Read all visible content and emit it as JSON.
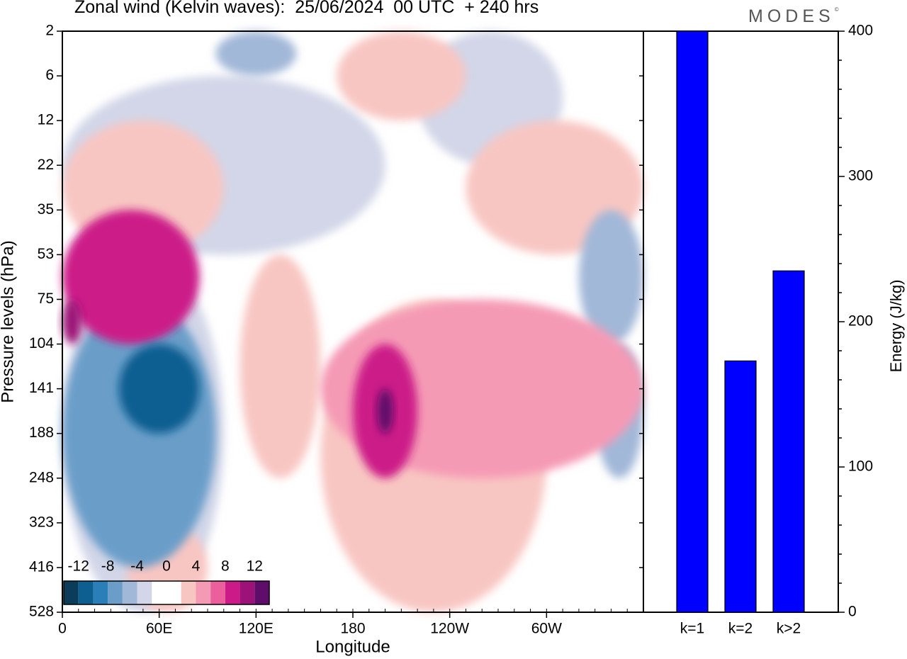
{
  "title": "Zonal wind (Kelvin waves):  25/06/2024  00 UTC  + 240 hrs",
  "brand": {
    "name": "MODES",
    "mark": "©"
  },
  "chart_data": [
    {
      "type": "heatmap",
      "title": "Zonal wind (Kelvin waves):  25/06/2024  00 UTC  + 240 hrs",
      "xlabel": "Longitude",
      "ylabel": "Pressure levels (hPa)",
      "x_ticks": [
        "0",
        "60E",
        "120E",
        "180",
        "120W",
        "60W"
      ],
      "x_tick_degrees": [
        0,
        60,
        120,
        180,
        240,
        300
      ],
      "xlim": [
        0,
        360
      ],
      "y_ticks": [
        "2",
        "6",
        "12",
        "22",
        "35",
        "53",
        "75",
        "104",
        "141",
        "188",
        "248",
        "323",
        "416",
        "528"
      ],
      "colorbar": {
        "labels": [
          "-12",
          "-8",
          "-4",
          "0",
          "4",
          "8",
          "12"
        ],
        "colors": [
          "#0b3d5a",
          "#0d5f92",
          "#2b7fb8",
          "#6a9ec9",
          "#a2b8d8",
          "#d2d6e8",
          "#ffffff",
          "#ffffff",
          "#f8c6c2",
          "#f59ab5",
          "#ec5f9d",
          "#cc1a88",
          "#9c1278",
          "#5f0c6a"
        ]
      },
      "anomalies": [
        {
          "sign": "negative",
          "level": 5,
          "x": [
            35,
            85
          ],
          "y": [
            104,
            188
          ]
        },
        {
          "sign": "negative",
          "level": 3,
          "x": [
            0,
            95
          ],
          "y": [
            75,
            416
          ]
        },
        {
          "sign": "negative",
          "level": 1,
          "x": [
            0,
            100
          ],
          "y": [
            53,
            528
          ]
        },
        {
          "sign": "negative",
          "level": 2,
          "x": [
            95,
            145
          ],
          "y": [
            2,
            6
          ]
        },
        {
          "sign": "negative",
          "level": 1,
          "x": [
            0,
            200
          ],
          "y": [
            6,
            53
          ]
        },
        {
          "sign": "negative",
          "level": 2,
          "x": [
            320,
            360
          ],
          "y": [
            35,
            104
          ]
        },
        {
          "sign": "negative",
          "level": 2,
          "x": [
            330,
            360
          ],
          "y": [
            104,
            248
          ]
        },
        {
          "sign": "negative",
          "level": 1,
          "x": [
            220,
            310
          ],
          "y": [
            2,
            22
          ]
        },
        {
          "sign": "positive",
          "level": 4,
          "x": [
            0,
            85
          ],
          "y": [
            35,
            104
          ]
        },
        {
          "sign": "positive",
          "level": 5,
          "x": [
            0,
            12
          ],
          "y": [
            75,
            104
          ]
        },
        {
          "sign": "positive",
          "level": 1,
          "x": [
            0,
            100
          ],
          "y": [
            12,
            53
          ]
        },
        {
          "sign": "positive",
          "level": 1,
          "x": [
            170,
            250
          ],
          "y": [
            2,
            12
          ]
        },
        {
          "sign": "positive",
          "level": 4,
          "x": [
            180,
            220
          ],
          "y": [
            104,
            248
          ]
        },
        {
          "sign": "positive",
          "level": 6,
          "x": [
            195,
            205
          ],
          "y": [
            141,
            188
          ]
        },
        {
          "sign": "positive",
          "level": 2,
          "x": [
            160,
            360
          ],
          "y": [
            75,
            248
          ]
        },
        {
          "sign": "positive",
          "level": 1,
          "x": [
            160,
            300
          ],
          "y": [
            75,
            528
          ]
        },
        {
          "sign": "positive",
          "level": 1,
          "x": [
            250,
            360
          ],
          "y": [
            12,
            53
          ]
        },
        {
          "sign": "positive",
          "level": 1,
          "x": [
            110,
            160
          ],
          "y": [
            53,
            248
          ]
        },
        {
          "sign": "positive",
          "level": 1,
          "x": [
            40,
            90
          ],
          "y": [
            323,
            528
          ]
        }
      ]
    },
    {
      "type": "bar",
      "ylabel": "Energy (J/kg)",
      "categories": [
        "k=1",
        "k=2",
        "k>2"
      ],
      "values": [
        400,
        173,
        235
      ],
      "ylim": [
        0,
        400
      ],
      "y_ticks": [
        "0",
        "100",
        "200",
        "300",
        "400"
      ],
      "color": "#0000ff"
    }
  ]
}
